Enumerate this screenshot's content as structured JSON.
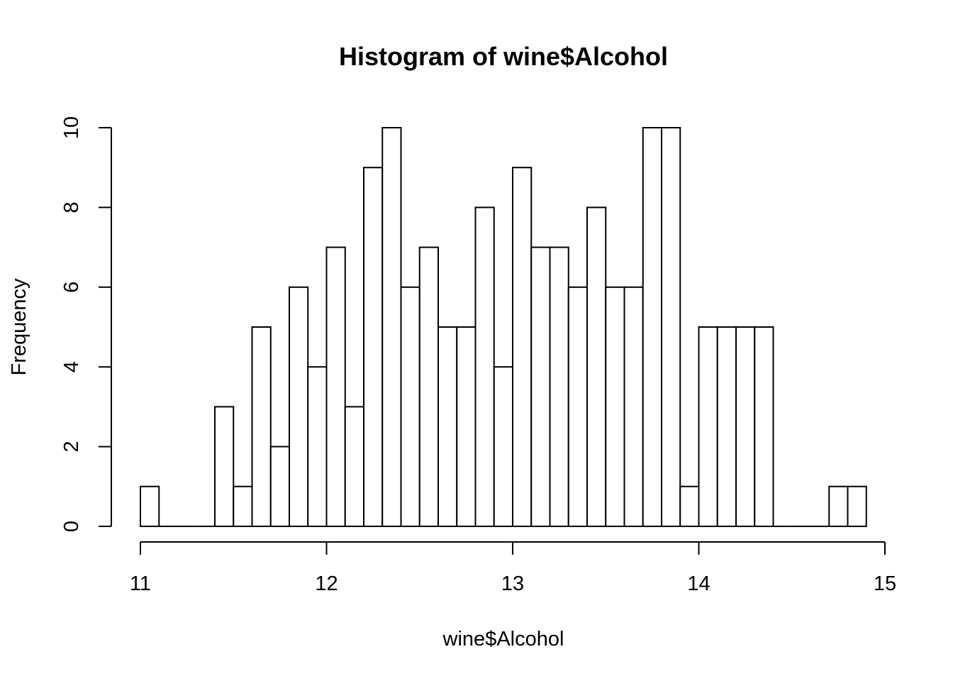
{
  "chart_data": {
    "type": "bar",
    "title": "Histogram of wine$Alcohol",
    "xlabel": "wine$Alcohol",
    "ylabel": "Frequency",
    "xlim": [
      11,
      15
    ],
    "ylim": [
      0,
      10
    ],
    "x_ticks": [
      "11",
      "12",
      "13",
      "14",
      "15"
    ],
    "y_ticks": [
      "0",
      "2",
      "4",
      "6",
      "8",
      "10"
    ],
    "bin_width": 0.1,
    "bin_start": [
      11.0,
      11.1,
      11.2,
      11.3,
      11.4,
      11.5,
      11.6,
      11.7,
      11.8,
      11.9,
      12.0,
      12.1,
      12.2,
      12.3,
      12.4,
      12.5,
      12.6,
      12.7,
      12.8,
      12.9,
      13.0,
      13.1,
      13.2,
      13.3,
      13.4,
      13.5,
      13.6,
      13.7,
      13.8,
      13.9,
      14.0,
      14.1,
      14.2,
      14.3,
      14.4,
      14.5,
      14.6,
      14.7,
      14.8
    ],
    "values": [
      1,
      0,
      0,
      0,
      3,
      1,
      5,
      2,
      6,
      4,
      7,
      3,
      9,
      10,
      6,
      7,
      5,
      5,
      8,
      4,
      9,
      7,
      7,
      6,
      8,
      6,
      6,
      10,
      10,
      1,
      5,
      5,
      5,
      5,
      0,
      0,
      0,
      1,
      1
    ],
    "grid": false,
    "legend": "none"
  }
}
